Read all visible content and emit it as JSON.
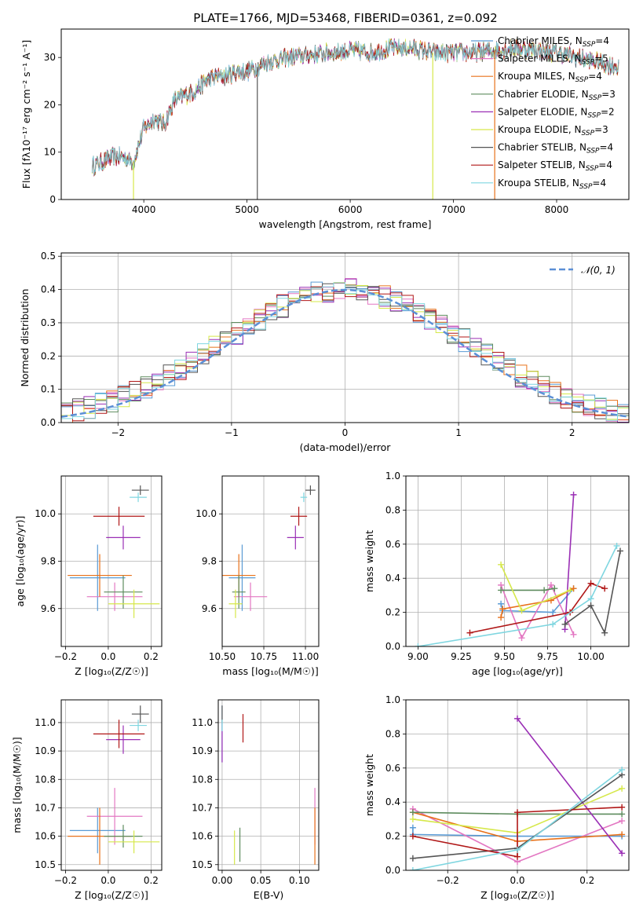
{
  "title": "PLATE=1766, MJD=53468, FIBERID=0361, z=0.092",
  "chart_data": [
    {
      "id": "spectrum",
      "type": "line",
      "xlabel": "wavelength [Angstrom, rest frame]",
      "ylabel": "Flux [fλ10⁻¹⁷ erg cm⁻² s⁻¹ A⁻¹]",
      "xlim": [
        3200,
        8700
      ],
      "ylim": [
        0,
        36
      ],
      "xticks": [
        4000,
        5000,
        6000,
        7000,
        8000
      ],
      "yticks": [
        0,
        10,
        20,
        30
      ],
      "grid": false,
      "legend_position": "top-right",
      "spectrum_envelope": {
        "x": [
          3500,
          3600,
          3700,
          3800,
          3900,
          4000,
          4100,
          4200,
          4300,
          4400,
          4500,
          4600,
          4700,
          4800,
          4900,
          5000,
          5200,
          5400,
          5600,
          5800,
          6000,
          6200,
          6400,
          6600,
          6800,
          7000,
          7200,
          7400,
          7600,
          7800,
          8000,
          8200,
          8400,
          8600
        ],
        "y": [
          7,
          8,
          9,
          9,
          8,
          15,
          17,
          16,
          21,
          22,
          23,
          25,
          26,
          26,
          27,
          27,
          29,
          30,
          30.5,
          31,
          31.5,
          31,
          32,
          32,
          31,
          31,
          31,
          31.5,
          32,
          31.5,
          31,
          30,
          29,
          28
        ]
      },
      "series": [
        {
          "name": "Chabrier MILES, N_SSP=4",
          "color": "#5a9bd5"
        },
        {
          "name": "Salpeter MILES, N_SSP=5",
          "color": "#e377c2"
        },
        {
          "name": "Kroupa MILES, N_SSP=4",
          "color": "#e8711a"
        },
        {
          "name": "Chabrier ELODIE, N_SSP=3",
          "color": "#5e8c5e"
        },
        {
          "name": "Salpeter ELODIE, N_SSP=2",
          "color": "#9a2fb5"
        },
        {
          "name": "Kroupa ELODIE, N_SSP=3",
          "color": "#d6e84a"
        },
        {
          "name": "Chabrier STELIB, N_SSP=4",
          "color": "#555555"
        },
        {
          "name": "Salpeter STELIB, N_SSP=4",
          "color": "#b01717"
        },
        {
          "name": "Kroupa STELIB, N_SSP=4",
          "color": "#7fd6e0"
        }
      ]
    },
    {
      "id": "residuals",
      "type": "bar",
      "xlabel": "(data-model)/error",
      "ylabel": "Normed distribution",
      "xlim": [
        -2.5,
        2.5
      ],
      "ylim": [
        0,
        0.51
      ],
      "xticks": [
        -2,
        -1,
        0,
        1,
        2
      ],
      "yticks": [
        0.0,
        0.1,
        0.2,
        0.3,
        0.4,
        0.5
      ],
      "grid": true,
      "legend_position": "top-right",
      "legend": "𝒩(0, 1)",
      "reference_color": "#5b8fd6"
    },
    {
      "id": "age_vs_Z",
      "type": "scatter",
      "xlabel": "Z [log₁₀(Z/Z☉)]",
      "ylabel": "age  [log₁₀(age/yr)]",
      "xlim": [
        -0.22,
        0.25
      ],
      "ylim": [
        9.44,
        10.16
      ],
      "xticks": [
        -0.2,
        0.0,
        0.2
      ],
      "yticks": [
        9.6,
        9.8,
        10.0
      ],
      "grid": true,
      "points": [
        {
          "x": -0.05,
          "y": 9.73,
          "xerr": 0.13,
          "yerr": 0.14,
          "color": "#5a9bd5"
        },
        {
          "x": 0.03,
          "y": 9.65,
          "xerr": 0.13,
          "yerr": 0.06,
          "color": "#e377c2"
        },
        {
          "x": -0.04,
          "y": 9.74,
          "xerr": 0.15,
          "yerr": 0.09,
          "color": "#e8711a"
        },
        {
          "x": 0.07,
          "y": 9.67,
          "xerr": 0.09,
          "yerr": 0.07,
          "color": "#5e8c5e"
        },
        {
          "x": 0.07,
          "y": 9.9,
          "xerr": 0.08,
          "yerr": 0.05,
          "color": "#9a2fb5"
        },
        {
          "x": 0.12,
          "y": 9.62,
          "xerr": 0.12,
          "yerr": 0.06,
          "color": "#d6e84a"
        },
        {
          "x": 0.15,
          "y": 10.1,
          "xerr": 0.04,
          "yerr": 0.02,
          "color": "#555555"
        },
        {
          "x": 0.05,
          "y": 9.99,
          "xerr": 0.12,
          "yerr": 0.04,
          "color": "#b01717"
        },
        {
          "x": 0.14,
          "y": 10.07,
          "xerr": 0.04,
          "yerr": 0.02,
          "color": "#7fd6e0"
        }
      ]
    },
    {
      "id": "age_vs_mass",
      "type": "scatter",
      "xlabel": "mass [log₁₀(M/M☉)]",
      "ylabel": "",
      "xlim": [
        10.5,
        11.08
      ],
      "ylim": [
        9.44,
        10.16
      ],
      "xticks": [
        10.5,
        10.75,
        11.0
      ],
      "yticks": [
        9.6,
        9.8,
        10.0
      ],
      "grid": true,
      "points": [
        {
          "x": 10.62,
          "y": 9.73,
          "xerr": 0.08,
          "yerr": 0.14,
          "color": "#5a9bd5"
        },
        {
          "x": 10.67,
          "y": 9.65,
          "xerr": 0.1,
          "yerr": 0.06,
          "color": "#e377c2"
        },
        {
          "x": 10.6,
          "y": 9.74,
          "xerr": 0.1,
          "yerr": 0.09,
          "color": "#e8711a"
        },
        {
          "x": 10.6,
          "y": 9.67,
          "xerr": 0.04,
          "yerr": 0.07,
          "color": "#5e8c5e"
        },
        {
          "x": 10.94,
          "y": 9.9,
          "xerr": 0.05,
          "yerr": 0.05,
          "color": "#9a2fb5"
        },
        {
          "x": 10.58,
          "y": 9.62,
          "xerr": 0.04,
          "yerr": 0.06,
          "color": "#d6e84a"
        },
        {
          "x": 11.03,
          "y": 10.1,
          "xerr": 0.03,
          "yerr": 0.02,
          "color": "#555555"
        },
        {
          "x": 10.96,
          "y": 9.99,
          "xerr": 0.05,
          "yerr": 0.04,
          "color": "#b01717"
        },
        {
          "x": 10.99,
          "y": 10.07,
          "xerr": 0.02,
          "yerr": 0.02,
          "color": "#7fd6e0"
        }
      ]
    },
    {
      "id": "weight_vs_age",
      "type": "line",
      "xlabel": "age  [log₁₀(age/yr)]",
      "ylabel": "mass weight",
      "xlim": [
        8.93,
        10.22
      ],
      "ylim": [
        0,
        1
      ],
      "xticks": [
        9.0,
        9.25,
        9.5,
        9.75,
        10.0
      ],
      "yticks": [
        0.0,
        0.2,
        0.4,
        0.6,
        0.8,
        1.0
      ],
      "grid": true,
      "series": [
        {
          "color": "#5a9bd5",
          "x": [
            9.48,
            9.49,
            9.78,
            9.9
          ],
          "y": [
            0.25,
            0.21,
            0.2,
            0.34
          ]
        },
        {
          "color": "#e377c2",
          "x": [
            9.48,
            9.6,
            9.77,
            9.9
          ],
          "y": [
            0.36,
            0.05,
            0.36,
            0.07
          ]
        },
        {
          "color": "#e8711a",
          "x": [
            9.48,
            9.49,
            9.77,
            9.9
          ],
          "y": [
            0.17,
            0.22,
            0.27,
            0.34
          ]
        },
        {
          "color": "#5e8c5e",
          "x": [
            9.48,
            9.73,
            9.79
          ],
          "y": [
            0.33,
            0.33,
            0.34
          ]
        },
        {
          "color": "#9a2fb5",
          "x": [
            9.85,
            9.9
          ],
          "y": [
            0.1,
            0.89
          ]
        },
        {
          "color": "#d6e84a",
          "x": [
            9.48,
            9.6,
            9.88
          ],
          "y": [
            0.48,
            0.21,
            0.33
          ]
        },
        {
          "color": "#555555",
          "x": [
            9.85,
            10.0,
            10.08,
            10.17
          ],
          "y": [
            0.13,
            0.24,
            0.08,
            0.56
          ]
        },
        {
          "color": "#b01717",
          "x": [
            9.3,
            9.88,
            10.0,
            10.08
          ],
          "y": [
            0.08,
            0.2,
            0.37,
            0.34
          ]
        },
        {
          "color": "#7fd6e0",
          "x": [
            9.0,
            9.78,
            10.0,
            10.15
          ],
          "y": [
            0.0,
            0.13,
            0.28,
            0.59
          ]
        }
      ]
    },
    {
      "id": "mass_vs_Z",
      "type": "scatter",
      "xlabel": "Z [log₁₀(Z/Z☉)]",
      "ylabel": "mass [log₁₀(M/M☉)]",
      "xlim": [
        -0.22,
        0.25
      ],
      "ylim": [
        10.48,
        11.08
      ],
      "xticks": [
        -0.2,
        0.0,
        0.2
      ],
      "yticks": [
        10.5,
        10.6,
        10.7,
        10.8,
        10.9,
        11.0
      ],
      "grid": true,
      "points": [
        {
          "x": -0.05,
          "y": 10.62,
          "xerr": 0.13,
          "yerr": 0.08,
          "color": "#5a9bd5"
        },
        {
          "x": 0.03,
          "y": 10.67,
          "xerr": 0.13,
          "yerr": 0.1,
          "color": "#e377c2"
        },
        {
          "x": -0.04,
          "y": 10.6,
          "xerr": 0.15,
          "yerr": 0.1,
          "color": "#e8711a"
        },
        {
          "x": 0.07,
          "y": 10.6,
          "xerr": 0.09,
          "yerr": 0.04,
          "color": "#5e8c5e"
        },
        {
          "x": 0.07,
          "y": 10.94,
          "xerr": 0.08,
          "yerr": 0.05,
          "color": "#9a2fb5"
        },
        {
          "x": 0.12,
          "y": 10.58,
          "xerr": 0.12,
          "yerr": 0.04,
          "color": "#d6e84a"
        },
        {
          "x": 0.15,
          "y": 11.03,
          "xerr": 0.04,
          "yerr": 0.03,
          "color": "#555555"
        },
        {
          "x": 0.05,
          "y": 10.96,
          "xerr": 0.12,
          "yerr": 0.05,
          "color": "#b01717"
        },
        {
          "x": 0.14,
          "y": 10.99,
          "xerr": 0.04,
          "yerr": 0.02,
          "color": "#7fd6e0"
        }
      ]
    },
    {
      "id": "mass_vs_ebv",
      "type": "scatter",
      "xlabel": "E(B-V)",
      "ylabel": "",
      "xlim": [
        -0.005,
        0.125
      ],
      "ylim": [
        10.48,
        11.08
      ],
      "xticks": [
        0.0,
        0.05,
        0.1
      ],
      "yticks": [
        10.5,
        10.6,
        10.7,
        10.8,
        10.9,
        11.0
      ],
      "grid": true,
      "points": [
        {
          "x": 0.0,
          "y": 10.96,
          "yerr": 0.1,
          "color": "#5a9bd5"
        },
        {
          "x": 0.12,
          "y": 10.67,
          "yerr": 0.1,
          "color": "#e377c2"
        },
        {
          "x": 0.12,
          "y": 10.6,
          "yerr": 0.1,
          "color": "#e8711a"
        },
        {
          "x": 0.023,
          "y": 10.57,
          "yerr": 0.06,
          "color": "#5e8c5e"
        },
        {
          "x": 0.0,
          "y": 10.93,
          "yerr": 0.07,
          "color": "#9a2fb5"
        },
        {
          "x": 0.016,
          "y": 10.56,
          "yerr": 0.06,
          "color": "#d6e84a"
        },
        {
          "x": 0.0,
          "y": 11.03,
          "yerr": 0.03,
          "color": "#555555"
        },
        {
          "x": 0.027,
          "y": 10.98,
          "yerr": 0.05,
          "color": "#b01717"
        },
        {
          "x": 0.0,
          "y": 10.99,
          "yerr": 0.02,
          "color": "#7fd6e0"
        }
      ]
    },
    {
      "id": "weight_vs_Z",
      "type": "line",
      "xlabel": "Z [log₁₀(Z/Z☉)]",
      "ylabel": "mass weight",
      "xlim": [
        -0.32,
        0.32
      ],
      "ylim": [
        0,
        1
      ],
      "xticks": [
        -0.2,
        0.0,
        0.2
      ],
      "yticks": [
        0.0,
        0.2,
        0.4,
        0.6,
        0.8,
        1.0
      ],
      "grid": true,
      "series": [
        {
          "color": "#5a9bd5",
          "x": [
            -0.3,
            -0.3,
            0.0,
            0.3
          ],
          "y": [
            0.25,
            0.21,
            0.2,
            0.2
          ]
        },
        {
          "color": "#e377c2",
          "x": [
            -0.3,
            0.0,
            0.3
          ],
          "y": [
            0.36,
            0.05,
            0.29
          ]
        },
        {
          "color": "#e8711a",
          "x": [
            -0.3,
            0.0,
            0.3
          ],
          "y": [
            0.34,
            0.17,
            0.21
          ]
        },
        {
          "color": "#5e8c5e",
          "x": [
            -0.3,
            0.0,
            0.3
          ],
          "y": [
            0.34,
            0.33,
            0.33
          ]
        },
        {
          "color": "#9a2fb5",
          "x": [
            0.0,
            0.3
          ],
          "y": [
            0.89,
            0.1
          ]
        },
        {
          "color": "#d6e84a",
          "x": [
            -0.3,
            0.0,
            0.3
          ],
          "y": [
            0.3,
            0.22,
            0.48
          ]
        },
        {
          "color": "#555555",
          "x": [
            -0.3,
            0.0,
            0.3
          ],
          "y": [
            0.07,
            0.13,
            0.56
          ]
        },
        {
          "color": "#b01717",
          "x": [
            -0.3,
            0.0,
            0.0,
            0.3
          ],
          "y": [
            0.2,
            0.08,
            0.34,
            0.37
          ]
        },
        {
          "color": "#7fd6e0",
          "x": [
            -0.3,
            0.0,
            0.3
          ],
          "y": [
            0.0,
            0.12,
            0.59
          ]
        }
      ]
    }
  ]
}
